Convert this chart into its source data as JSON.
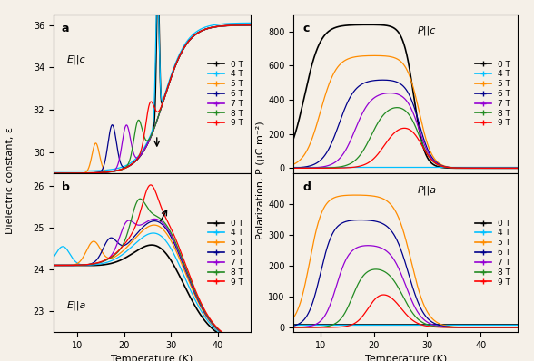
{
  "colors": {
    "0T": "#000000",
    "4T": "#00bfff",
    "5T": "#ff8c00",
    "6T": "#00008b",
    "7T": "#9400d3",
    "8T": "#228b22",
    "9T": "#ff0000"
  },
  "labels": [
    "0 T",
    "4 T",
    "5 T",
    "6 T",
    "7 T",
    "8 T",
    "9 T"
  ],
  "panel_labels": [
    "a",
    "b",
    "c",
    "d"
  ],
  "Ec_label": "E||c",
  "Ea_label": "E||a",
  "Pc_label": "P||c",
  "Pa_label": "P||a",
  "ylabel_epsilon": "Dielectric constant, ε",
  "ylabel_P": "Polarization, P (μC m⁻²)",
  "xlabel": "Temperature (K)",
  "T_range": [
    5,
    47
  ],
  "background": "#f5f0e8"
}
